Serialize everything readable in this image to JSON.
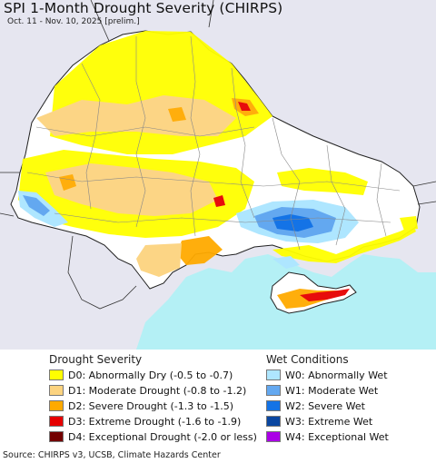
{
  "title": "SPI 1-Month Drought Severity (CHIRPS)",
  "subtitle": "Oct. 11 - Nov. 10, 2025 [prelim.]",
  "source": "Source: CHIRPS v3, UCSB, Climate Hazards Center",
  "drought_legend": {
    "heading": "Drought Severity",
    "items": [
      {
        "label": "D0: Abnormally Dry (-0.5 to -0.7)",
        "color": "#ffff00"
      },
      {
        "label": "D1: Moderate Drought (-0.8 to -1.2)",
        "color": "#fcd37f"
      },
      {
        "label": "D2: Severe Drought (-1.3 to -1.5)",
        "color": "#ffaa00"
      },
      {
        "label": "D3: Extreme Drought (-1.6 to -1.9)",
        "color": "#e60000"
      },
      {
        "label": "D4: Exceptional Drought (-2.0 or less)",
        "color": "#730000"
      }
    ]
  },
  "wet_legend": {
    "heading": "Wet Conditions",
    "items": [
      {
        "label": "W0: Abnormally Wet",
        "color": "#aee6ff"
      },
      {
        "label": "W1: Moderate Wet",
        "color": "#63a8f0"
      },
      {
        "label": "W2: Severe Wet",
        "color": "#1473e6"
      },
      {
        "label": "W3: Extreme Wet",
        "color": "#0a46a0"
      },
      {
        "label": "W4: Exceptional Wet",
        "color": "#aa00e6"
      }
    ]
  },
  "map_colors": {
    "sea": "#b4f0f5",
    "outside": "#e6e6f0",
    "land": "#ffffff",
    "border": "#222222",
    "admin": "#888888"
  }
}
